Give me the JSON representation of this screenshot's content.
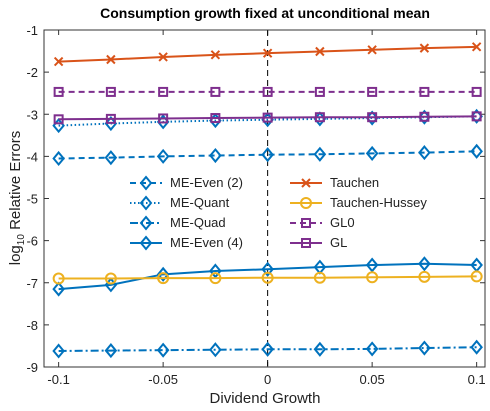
{
  "chart_data": {
    "type": "line",
    "title": "Consumption growth fixed at unconditional mean",
    "xlabel": "Dividend Growth",
    "ylabel": "log",
    "ylabel_sub": "10",
    "ylabel_rest": " Relative Errors",
    "x": [
      -0.1,
      -0.075,
      -0.05,
      -0.025,
      0,
      0.025,
      0.05,
      0.075,
      0.1
    ],
    "xlim": [
      -0.107,
      0.104
    ],
    "xticks": [
      -0.1,
      -0.05,
      0,
      0.05,
      0.1
    ],
    "ylim": [
      -9,
      -1
    ],
    "yticks": [
      -9,
      -8,
      -7,
      -6,
      -5,
      -4,
      -3,
      -2,
      -1
    ],
    "vline": 0,
    "legend_columns": 2,
    "series": [
      {
        "name": "ME-Even (2)",
        "color": "#0072bd",
        "dash": "6,4",
        "marker": "diamond",
        "values": [
          -4.05,
          -4.03,
          -4.0,
          -3.98,
          -3.96,
          -3.95,
          -3.93,
          -3.91,
          -3.88
        ]
      },
      {
        "name": "ME-Quant",
        "color": "#0072bd",
        "dash": "1.5,2.5",
        "marker": "diamond",
        "values": [
          -3.27,
          -3.22,
          -3.18,
          -3.15,
          -3.13,
          -3.11,
          -3.09,
          -3.07,
          -3.05
        ]
      },
      {
        "name": "ME-Quad",
        "color": "#0072bd",
        "dash": "8,3,2,3",
        "marker": "diamond",
        "values": [
          -8.62,
          -8.61,
          -8.6,
          -8.59,
          -8.58,
          -8.58,
          -8.57,
          -8.55,
          -8.53
        ]
      },
      {
        "name": "ME-Even (4)",
        "color": "#0072bd",
        "dash": "none",
        "marker": "diamond",
        "values": [
          -7.15,
          -7.05,
          -6.8,
          -6.72,
          -6.68,
          -6.63,
          -6.58,
          -6.55,
          -6.58
        ]
      },
      {
        "name": "Tauchen",
        "color": "#d95319",
        "dash": "none",
        "marker": "x",
        "values": [
          -1.75,
          -1.7,
          -1.64,
          -1.59,
          -1.55,
          -1.51,
          -1.47,
          -1.43,
          -1.4
        ]
      },
      {
        "name": "Tauchen-Hussey",
        "color": "#edb120",
        "dash": "none",
        "marker": "circle",
        "values": [
          -6.9,
          -6.9,
          -6.89,
          -6.89,
          -6.88,
          -6.88,
          -6.87,
          -6.86,
          -6.85
        ]
      },
      {
        "name": "GL0",
        "color": "#7e2f8e",
        "dash": "6,4",
        "marker": "square",
        "values": [
          -2.47,
          -2.47,
          -2.47,
          -2.47,
          -2.47,
          -2.47,
          -2.47,
          -2.47,
          -2.47
        ]
      },
      {
        "name": "GL",
        "color": "#7e2f8e",
        "dash": "none",
        "marker": "square",
        "values": [
          -3.12,
          -3.11,
          -3.1,
          -3.09,
          -3.08,
          -3.07,
          -3.07,
          -3.06,
          -3.05
        ]
      }
    ]
  }
}
